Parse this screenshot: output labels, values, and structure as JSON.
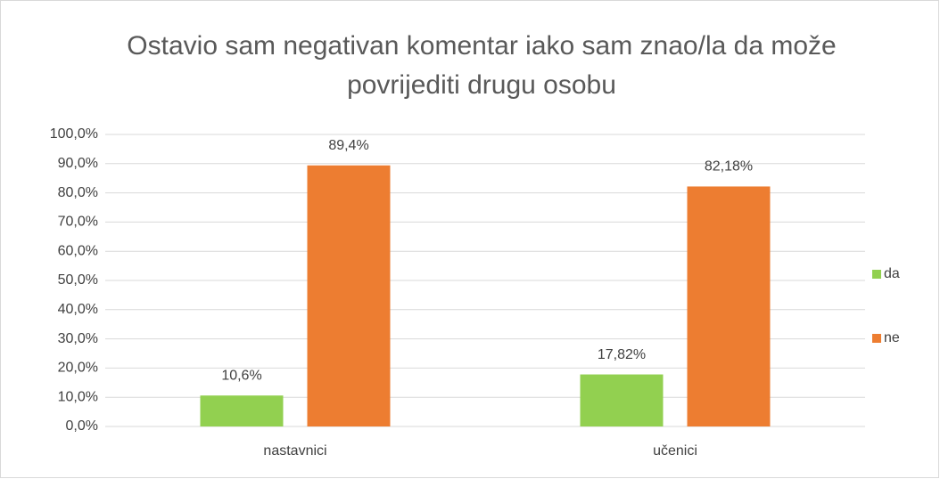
{
  "chart_data": {
    "type": "bar",
    "title": "Ostavio sam negativan komentar iako sam znao/la da može povrijediti drugu osobu",
    "categories": [
      "nastavnici",
      "učenici"
    ],
    "series": [
      {
        "name": "da",
        "color": "#92d050",
        "values": [
          10.6,
          17.82
        ],
        "value_labels": [
          "10,6%",
          "17,82%"
        ]
      },
      {
        "name": "ne",
        "color": "#ed7d31",
        "values": [
          89.4,
          82.18
        ],
        "value_labels": [
          "89,4%",
          "82,18%"
        ]
      }
    ],
    "ylim": [
      0,
      100
    ],
    "yticks": [
      {
        "value": 0,
        "label": "0,0%"
      },
      {
        "value": 10,
        "label": "10,0%"
      },
      {
        "value": 20,
        "label": "20,0%"
      },
      {
        "value": 30,
        "label": "30,0%"
      },
      {
        "value": 40,
        "label": "40,0%"
      },
      {
        "value": 50,
        "label": "50,0%"
      },
      {
        "value": 60,
        "label": "60,0%"
      },
      {
        "value": 70,
        "label": "70,0%"
      },
      {
        "value": 80,
        "label": "80,0%"
      },
      {
        "value": 90,
        "label": "90,0%"
      },
      {
        "value": 100,
        "label": "100,0%"
      }
    ],
    "grid": true,
    "legend": "right"
  }
}
